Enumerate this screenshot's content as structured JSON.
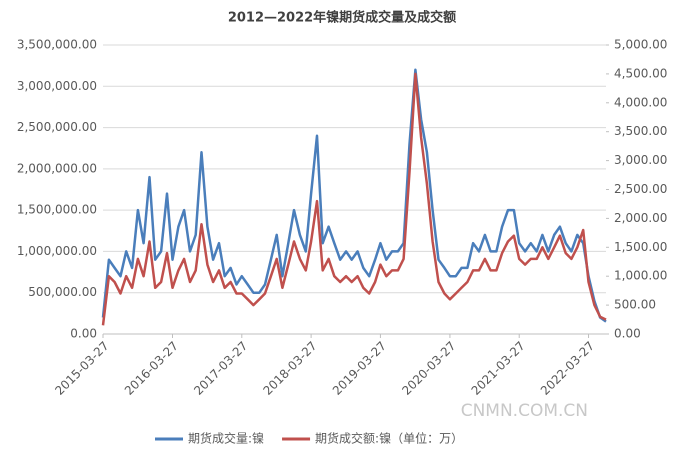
{
  "chart_data": {
    "type": "line",
    "title": "2012—2022年镍期货成交量及成交额",
    "watermark": "CNMN.COM.CN",
    "x": [
      "2015-03-27",
      "2015-04-27",
      "2015-05-27",
      "2015-06-27",
      "2015-07-27",
      "2015-08-27",
      "2015-09-27",
      "2015-10-27",
      "2015-11-27",
      "2015-12-27",
      "2016-01-27",
      "2016-02-27",
      "2016-03-27",
      "2016-04-27",
      "2016-05-27",
      "2016-06-27",
      "2016-07-27",
      "2016-08-27",
      "2016-09-27",
      "2016-10-27",
      "2016-11-27",
      "2016-12-27",
      "2017-01-27",
      "2017-02-27",
      "2017-03-27",
      "2017-04-27",
      "2017-05-27",
      "2017-06-27",
      "2017-07-27",
      "2017-08-27",
      "2017-09-27",
      "2017-10-27",
      "2017-11-27",
      "2017-12-27",
      "2018-01-27",
      "2018-02-27",
      "2018-03-27",
      "2018-04-27",
      "2018-05-27",
      "2018-06-27",
      "2018-07-27",
      "2018-08-27",
      "2018-09-27",
      "2018-10-27",
      "2018-11-27",
      "2018-12-27",
      "2019-01-27",
      "2019-02-27",
      "2019-03-27",
      "2019-04-27",
      "2019-05-27",
      "2019-06-27",
      "2019-07-27",
      "2019-08-27",
      "2019-09-27",
      "2019-10-27",
      "2019-11-27",
      "2019-12-27",
      "2020-01-27",
      "2020-02-27",
      "2020-03-27",
      "2020-04-27",
      "2020-05-27",
      "2020-06-27",
      "2020-07-27",
      "2020-08-27",
      "2020-09-27",
      "2020-10-27",
      "2020-11-27",
      "2020-12-27",
      "2021-01-27",
      "2021-02-27",
      "2021-03-27",
      "2021-04-27",
      "2021-05-27",
      "2021-06-27",
      "2021-07-27",
      "2021-08-27",
      "2021-09-27",
      "2021-10-27",
      "2021-11-27",
      "2021-12-27",
      "2022-01-27",
      "2022-02-27",
      "2022-03-27",
      "2022-04-27",
      "2022-05-27",
      "2022-06-27"
    ],
    "xticks": [
      "2015-03-27",
      "2016-03-27",
      "2017-03-27",
      "2018-03-27",
      "2019-03-27",
      "2020-03-27",
      "2021-03-27",
      "2022-03-27"
    ],
    "series": [
      {
        "name": "期货成交量:镍",
        "color": "#4a7ebb",
        "values": [
          200000,
          900000,
          800000,
          700000,
          1000000,
          800000,
          1500000,
          1100000,
          1900000,
          900000,
          1000000,
          1700000,
          900000,
          1300000,
          1500000,
          1000000,
          1200000,
          2200000,
          1300000,
          900000,
          1100000,
          700000,
          800000,
          600000,
          700000,
          600000,
          500000,
          500000,
          600000,
          900000,
          1200000,
          700000,
          1100000,
          1500000,
          1200000,
          1000000,
          1700000,
          2400000,
          1100000,
          1300000,
          1100000,
          900000,
          1000000,
          900000,
          1000000,
          800000,
          700000,
          900000,
          1100000,
          900000,
          1000000,
          1000000,
          1100000,
          2300000,
          3200000,
          2600000,
          2200000,
          1500000,
          900000,
          800000,
          700000,
          700000,
          800000,
          800000,
          1100000,
          1000000,
          1200000,
          1000000,
          1000000,
          1300000,
          1500000,
          1500000,
          1100000,
          1000000,
          1100000,
          1000000,
          1200000,
          1000000,
          1200000,
          1300000,
          1100000,
          1000000,
          1200000,
          1100000,
          700000,
          400000,
          200000,
          150000
        ]
      },
      {
        "name": "期货成交额:镍（单位：万）",
        "color": "#c0504d",
        "axis": "y2",
        "values": [
          150,
          1000,
          900,
          700,
          1000,
          800,
          1300,
          1000,
          1600,
          800,
          900,
          1400,
          800,
          1100,
          1300,
          900,
          1100,
          1900,
          1200,
          900,
          1100,
          800,
          900,
          700,
          700,
          600,
          500,
          600,
          700,
          1000,
          1300,
          800,
          1200,
          1600,
          1300,
          1100,
          1600,
          2300,
          1100,
          1300,
          1000,
          900,
          1000,
          900,
          1000,
          800,
          700,
          900,
          1200,
          1000,
          1100,
          1100,
          1300,
          2800,
          4500,
          3400,
          2600,
          1600,
          900,
          700,
          600,
          700,
          800,
          900,
          1100,
          1100,
          1300,
          1100,
          1100,
          1400,
          1600,
          1700,
          1300,
          1200,
          1300,
          1300,
          1500,
          1300,
          1500,
          1700,
          1400,
          1300,
          1500,
          1800,
          900,
          500,
          300,
          250
        ]
      }
    ],
    "ylim": [
      0,
      3500000
    ],
    "yticks": [
      {
        "value": 0,
        "label": "0.00"
      },
      {
        "value": 500000,
        "label": "500,000.00"
      },
      {
        "value": 1000000,
        "label": "1,000,000.00"
      },
      {
        "value": 1500000,
        "label": "1,500,000.00"
      },
      {
        "value": 2000000,
        "label": "2,000,000.00"
      },
      {
        "value": 2500000,
        "label": "2,500,000.00"
      },
      {
        "value": 3000000,
        "label": "3,000,000.00"
      },
      {
        "value": 3500000,
        "label": "3,500,000.00"
      }
    ],
    "y2lim": [
      0,
      5000
    ],
    "y2ticks": [
      {
        "value": 0,
        "label": "0.00"
      },
      {
        "value": 500,
        "label": "500.00"
      },
      {
        "value": 1000,
        "label": "1,000.00"
      },
      {
        "value": 1500,
        "label": "1,500.00"
      },
      {
        "value": 2000,
        "label": "2,000.00"
      },
      {
        "value": 2500,
        "label": "2,500.00"
      },
      {
        "value": 3000,
        "label": "3,000.00"
      },
      {
        "value": 3500,
        "label": "3,500.00"
      },
      {
        "value": 4000,
        "label": "4,000.00"
      },
      {
        "value": 4500,
        "label": "4,500.00"
      },
      {
        "value": 5000,
        "label": "5,000.00"
      }
    ],
    "grid": true,
    "legend": "bottom"
  }
}
